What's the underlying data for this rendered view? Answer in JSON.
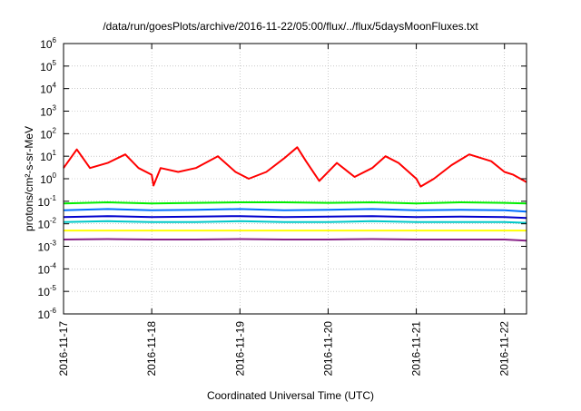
{
  "chart_data": {
    "type": "line",
    "title": "/data/run/goesPlots/archive/2016-11-22/05:00/flux/../flux/5daysMoonFluxes.txt",
    "xlabel": "Coordinated Universal Time (UTC)",
    "ylabel": "protons/cm²-s-sr-MeV",
    "yscale": "log",
    "ylim": [
      1e-06,
      1000000.0
    ],
    "xlim": [
      0,
      5.25
    ],
    "x_tick_labels": [
      "2016-11-17",
      "2016-11-18",
      "2016-11-19",
      "2016-11-20",
      "2016-11-21",
      "2016-11-22"
    ],
    "y_tick_exponents": [
      -6,
      -5,
      -4,
      -3,
      -2,
      -1,
      0,
      1,
      2,
      3,
      4,
      5,
      6
    ],
    "y_tick_base": "10",
    "grid": true,
    "legend": "none",
    "x_unit_note": "x values are days since 2016-11-17 00:00 UTC",
    "series": [
      {
        "color": "#ff0000",
        "x": [
          0,
          0.15,
          0.3,
          0.5,
          0.7,
          0.85,
          1.0,
          1.02,
          1.1,
          1.3,
          1.5,
          1.75,
          1.95,
          2.1,
          2.3,
          2.5,
          2.65,
          2.75,
          2.9,
          3.1,
          3.3,
          3.5,
          3.65,
          3.8,
          4.0,
          4.05,
          4.2,
          4.4,
          4.6,
          4.85,
          5.0,
          5.1,
          5.25
        ],
        "y": [
          3,
          20,
          3,
          5,
          12,
          3,
          1.5,
          0.5,
          3,
          2,
          3,
          10,
          2,
          1,
          2,
          8,
          25,
          6,
          0.8,
          5,
          1.2,
          3,
          10,
          5,
          1,
          0.45,
          1,
          4,
          12,
          6,
          2,
          1.5,
          0.7
        ]
      },
      {
        "color": "#00ee00",
        "x": [
          0,
          0.5,
          1.0,
          1.5,
          2.0,
          2.5,
          3.0,
          3.5,
          4.0,
          4.5,
          5.0,
          5.25
        ],
        "y": [
          0.08,
          0.09,
          0.08,
          0.085,
          0.09,
          0.09,
          0.085,
          0.09,
          0.08,
          0.09,
          0.085,
          0.08
        ]
      },
      {
        "color": "#0070ff",
        "x": [
          0,
          0.5,
          1.0,
          1.5,
          2.0,
          2.5,
          3.0,
          3.5,
          4.0,
          4.5,
          5.0,
          5.25
        ],
        "y": [
          0.04,
          0.045,
          0.04,
          0.042,
          0.045,
          0.04,
          0.042,
          0.045,
          0.04,
          0.042,
          0.04,
          0.035
        ]
      },
      {
        "color": "#00c8c8",
        "x": [
          0,
          0.5,
          1.0,
          1.5,
          2.0,
          2.5,
          3.0,
          3.5,
          4.0,
          4.5,
          5.0,
          5.25
        ],
        "y": [
          0.012,
          0.013,
          0.012,
          0.012,
          0.013,
          0.012,
          0.012,
          0.013,
          0.012,
          0.012,
          0.012,
          0.011
        ]
      },
      {
        "color": "#0000cc",
        "x": [
          0,
          0.5,
          1.0,
          1.5,
          2.0,
          2.5,
          3.0,
          3.5,
          4.0,
          4.5,
          5.0,
          5.25
        ],
        "y": [
          0.02,
          0.022,
          0.02,
          0.021,
          0.022,
          0.02,
          0.021,
          0.022,
          0.02,
          0.021,
          0.02,
          0.018
        ]
      },
      {
        "color": "#ffff00",
        "x": [
          0,
          0.5,
          1.0,
          1.5,
          2.0,
          2.5,
          3.0,
          3.5,
          4.0,
          4.5,
          5.0,
          5.25
        ],
        "y": [
          0.005,
          0.005,
          0.005,
          0.005,
          0.005,
          0.005,
          0.005,
          0.005,
          0.005,
          0.005,
          0.005,
          0.005
        ]
      },
      {
        "color": "#882288",
        "x": [
          0,
          0.5,
          1.0,
          1.5,
          2.0,
          2.5,
          3.0,
          3.5,
          4.0,
          4.5,
          5.0,
          5.25
        ],
        "y": [
          0.002,
          0.0021,
          0.002,
          0.002,
          0.0021,
          0.002,
          0.002,
          0.0021,
          0.002,
          0.002,
          0.002,
          0.0018
        ]
      }
    ]
  }
}
